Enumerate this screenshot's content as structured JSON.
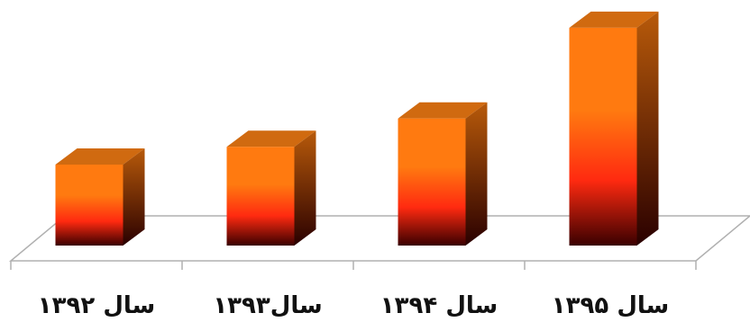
{
  "chart_data": {
    "type": "bar",
    "style": "3d-column",
    "title": "",
    "xlabel": "",
    "ylabel": "",
    "categories": [
      "سال ۱۳۹۲",
      "سال۱۳۹۳",
      "سال ۱۳۹۴",
      "سال ۱۳۹۵"
    ],
    "values": [
      100,
      122,
      157,
      269
    ],
    "ylim": [
      0,
      280
    ],
    "grid": false,
    "legend": "none",
    "colors": {
      "top": "#d06a10",
      "front_top": "#ff7a10",
      "front_mid": "#ff2a10",
      "front_bottom": "#3a0000",
      "side_top": "#b85a0a",
      "side_bottom": "#2a0000",
      "floor_line": "#b0b0b0"
    }
  }
}
